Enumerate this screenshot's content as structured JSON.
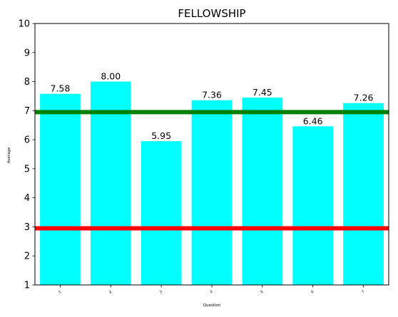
{
  "chart_data": {
    "type": "bar",
    "title": "FELLOWSHIP",
    "xlabel": "Question",
    "ylabel": "Average",
    "categories": [
      "1",
      "2",
      "3",
      "4",
      "5",
      "6",
      "7"
    ],
    "values": [
      7.58,
      8.0,
      5.95,
      7.36,
      7.45,
      6.46,
      7.26
    ],
    "value_labels": [
      "7.58",
      "8.00",
      "5.95",
      "7.36",
      "7.45",
      "6.46",
      "7.26"
    ],
    "ylim": [
      1,
      10
    ],
    "yticks": [
      "1",
      "2",
      "3",
      "4",
      "5",
      "6",
      "7",
      "8",
      "9",
      "10"
    ],
    "grid": false,
    "bar_color": "#00ffff",
    "reference_lines": [
      {
        "value": 6.95,
        "color": "#008000"
      },
      {
        "value": 2.95,
        "color": "#ff0000"
      }
    ]
  }
}
